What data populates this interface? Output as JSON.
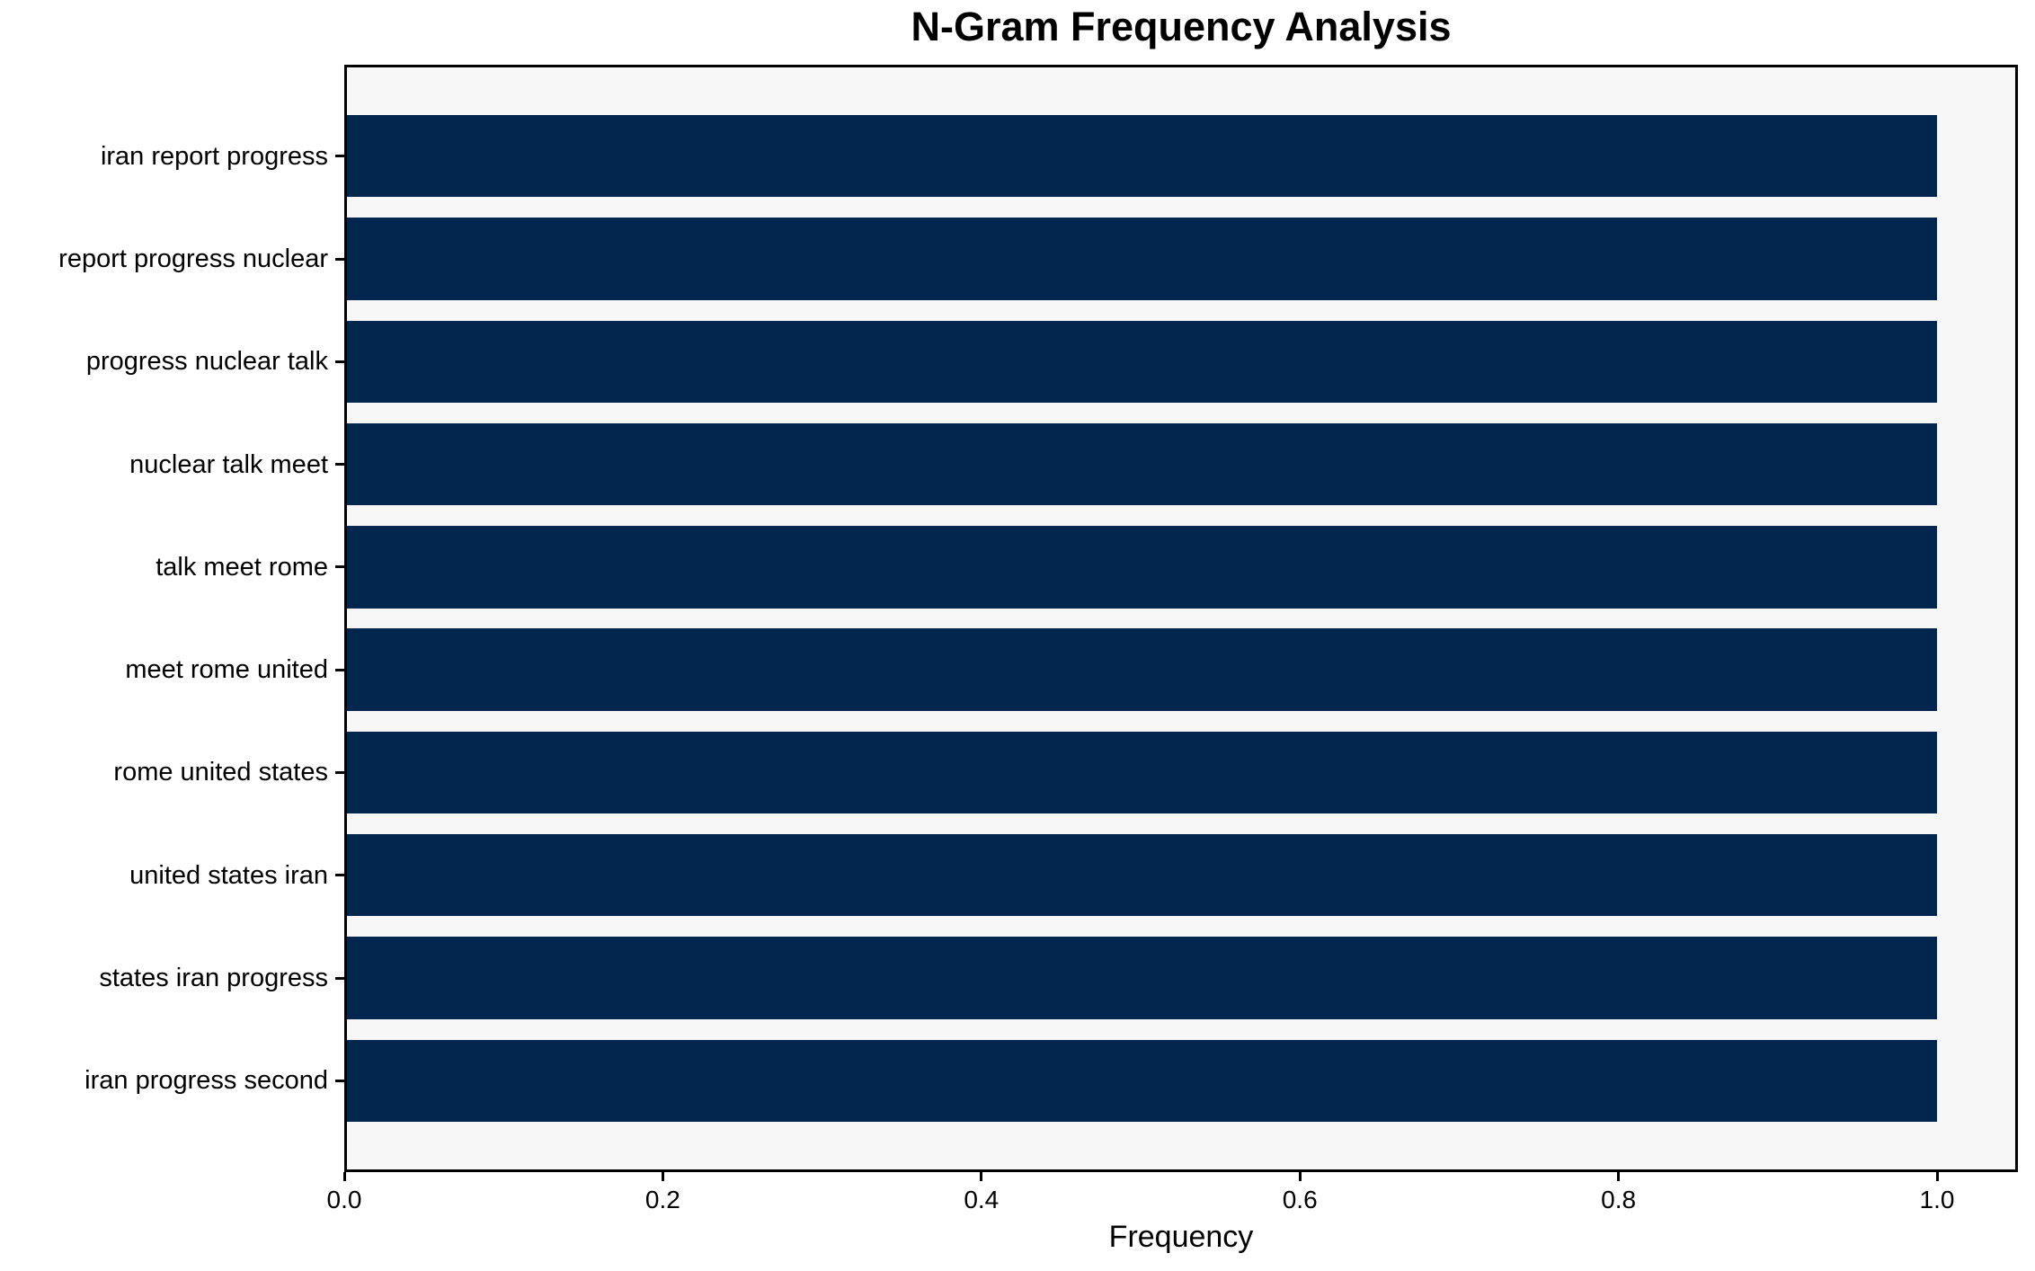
{
  "chart_data": {
    "type": "bar",
    "orientation": "horizontal",
    "title": "N-Gram Frequency Analysis",
    "xlabel": "Frequency",
    "ylabel": "",
    "categories": [
      "iran report progress",
      "report progress nuclear",
      "progress nuclear talk",
      "nuclear talk meet",
      "talk meet rome",
      "meet rome united",
      "rome united states",
      "united states iran",
      "states iran progress",
      "iran progress second"
    ],
    "values": [
      1.0,
      1.0,
      1.0,
      1.0,
      1.0,
      1.0,
      1.0,
      1.0,
      1.0,
      1.0
    ],
    "xlim": [
      0,
      1.05
    ],
    "xticks": [
      0.0,
      0.2,
      0.4,
      0.6,
      0.8,
      1.0
    ],
    "xtick_labels": [
      "0.0",
      "0.2",
      "0.4",
      "0.6",
      "0.8",
      "1.0"
    ],
    "bar_color": "#02264d",
    "plot_bg": "#f7f7f8",
    "spine_color": "#000000",
    "grid": false,
    "legend": null
  }
}
